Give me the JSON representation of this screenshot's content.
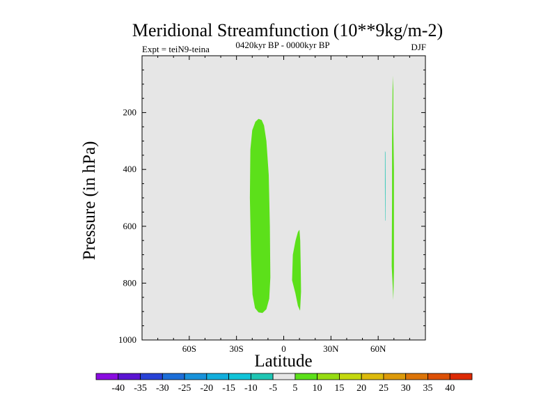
{
  "chart_data": {
    "type": "contour",
    "title": "Meridional Streamfunction (10**9kg/m-2)",
    "experiment": "Expt = teiN9-teina",
    "period": "0420kyr BP - 0000kyr BP",
    "season": "DJF",
    "xlabel": "Latitude",
    "ylabel": "Pressure (in hPa)",
    "xlim": [
      -90,
      90
    ],
    "ylim": [
      1000,
      0
    ],
    "xticks": [
      {
        "value": -60,
        "label": "60S"
      },
      {
        "value": -30,
        "label": "30S"
      },
      {
        "value": 0,
        "label": "0"
      },
      {
        "value": 30,
        "label": "30N"
      },
      {
        "value": 60,
        "label": "60N"
      }
    ],
    "yticks": [
      {
        "value": 200,
        "label": "200"
      },
      {
        "value": 400,
        "label": "400"
      },
      {
        "value": 600,
        "label": "600"
      },
      {
        "value": 800,
        "label": "800"
      },
      {
        "value": 1000,
        "label": "1000"
      }
    ],
    "background_color": "#e6e6e6",
    "regions": [
      {
        "name": "cell-southern-subtropics",
        "level_range": "5 to 10",
        "color": "#5ce01a",
        "lat_range": [
          -22,
          -7
        ],
        "pressure_range": [
          222,
          905
        ],
        "outline": [
          [
            -16,
            222
          ],
          [
            -14,
            226
          ],
          [
            -12.5,
            245
          ],
          [
            -11,
            300
          ],
          [
            -9.5,
            420
          ],
          [
            -8.8,
            600
          ],
          [
            -8.5,
            780
          ],
          [
            -9.2,
            855
          ],
          [
            -11,
            892
          ],
          [
            -13.5,
            905
          ],
          [
            -16,
            903
          ],
          [
            -18.2,
            888
          ],
          [
            -19.8,
            840
          ],
          [
            -20.8,
            700
          ],
          [
            -21.5,
            500
          ],
          [
            -21.2,
            330
          ],
          [
            -20,
            262
          ],
          [
            -18,
            232
          ]
        ]
      },
      {
        "name": "cell-equatorial",
        "level_range": "5 to 10",
        "color": "#5ce01a",
        "lat_range": [
          5,
          11
        ],
        "pressure_range": [
          612,
          897
        ],
        "outline": [
          [
            10,
            612
          ],
          [
            10.5,
            650
          ],
          [
            10.8,
            740
          ],
          [
            11,
            830
          ],
          [
            10.4,
            897
          ],
          [
            9,
            880
          ],
          [
            7.4,
            835
          ],
          [
            5.3,
            790
          ],
          [
            5.8,
            700
          ],
          [
            7.5,
            650
          ],
          [
            9,
            620
          ]
        ]
      },
      {
        "name": "cell-northern-high-lat",
        "level_range": "5 to 10",
        "color": "#5ce01a",
        "lat_range": [
          68,
          70
        ],
        "pressure_range": [
          70,
          860
        ],
        "outline": [
          [
            69.2,
            70
          ],
          [
            69.6,
            120
          ],
          [
            69.6,
            250
          ],
          [
            70,
            400
          ],
          [
            70,
            600
          ],
          [
            70,
            760
          ],
          [
            69.6,
            860
          ],
          [
            69.2,
            810
          ],
          [
            68.6,
            740
          ],
          [
            68.8,
            500
          ],
          [
            68.8,
            300
          ],
          [
            69.1,
            150
          ]
        ]
      },
      {
        "name": "sliver-northern-negative",
        "level_range": "-10 to -5",
        "color": "#1fc6b4",
        "lat_range": [
          64,
          65
        ],
        "pressure_range": [
          335,
          580
        ],
        "outline": [
          [
            64.3,
            335
          ],
          [
            64.6,
            340
          ],
          [
            64.7,
            450
          ],
          [
            64.6,
            580
          ],
          [
            64.4,
            580
          ],
          [
            64.3,
            450
          ]
        ]
      }
    ],
    "colorbar": {
      "labels": [
        "-40",
        "-35",
        "-30",
        "-25",
        "-20",
        "-15",
        "-10",
        "-5",
        "5",
        "10",
        "15",
        "20",
        "25",
        "30",
        "35",
        "40"
      ],
      "colors": [
        "#8a0ce0",
        "#5a14d2",
        "#2842d6",
        "#1c6ed8",
        "#1892da",
        "#12aedc",
        "#10c4d8",
        "#1fc6b4",
        "#e6e6e6",
        "#5ce01a",
        "#96dc12",
        "#c4d80e",
        "#dcba0c",
        "#dc9a0a",
        "#dc7408",
        "#dc5006",
        "#dc2a04"
      ]
    }
  }
}
